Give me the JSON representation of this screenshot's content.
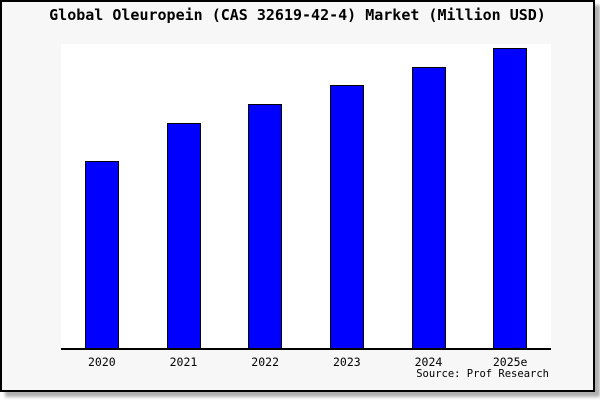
{
  "title": "Global Oleuropein (CAS 32619-42-4) Market (Million USD)",
  "source": "Source: Prof Research",
  "colors": {
    "bar_fill": "#0000ff",
    "bar_border": "#000000",
    "frame_border": "#000000",
    "frame_background": "#f7f7f7",
    "plot_background": "#ffffff",
    "axis_line": "#000000",
    "text": "#000000"
  },
  "chart_data": {
    "type": "bar",
    "title": "Global Oleuropein (CAS 32619-42-4) Market (Million USD)",
    "categories": [
      "2020",
      "2021",
      "2022",
      "2023",
      "2024",
      "2025e"
    ],
    "values": [
      62.3,
      75.0,
      81.3,
      87.7,
      93.7,
      100.0
    ],
    "value_note": "no numeric y-axis shown in chart; values estimated as percent of tallest bar (2025e = 100)",
    "xlabel": "",
    "ylabel": "",
    "ylim": [
      0,
      102
    ],
    "grid": false,
    "legend": false,
    "y_axis_visible": false,
    "x_axis_line": true,
    "annotation": "Source: Prof Research"
  }
}
